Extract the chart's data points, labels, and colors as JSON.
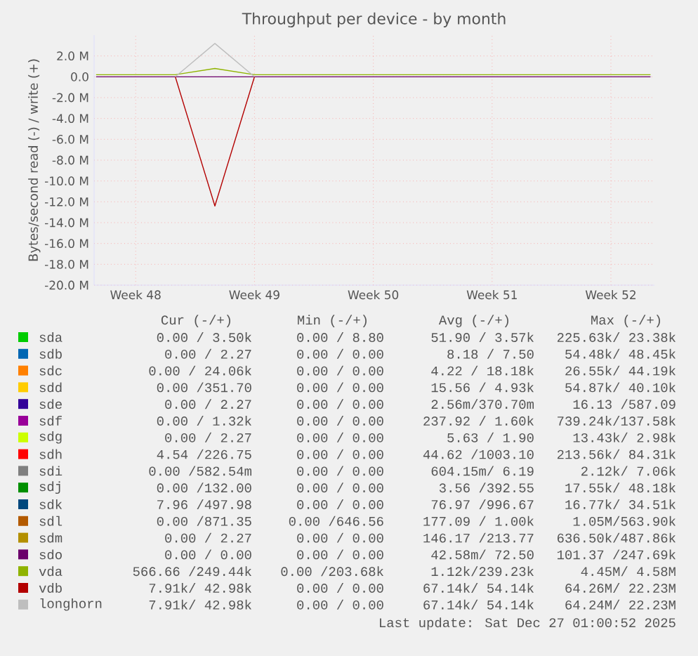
{
  "chart_data": {
    "type": "line",
    "title": "Throughput per device - by month",
    "ylabel": "Bytes/second read (-) / write (+)",
    "categories": [
      null,
      "Week 48",
      null,
      null,
      "Week 49",
      null,
      null,
      "Week 50",
      null,
      null,
      "Week 51",
      null,
      null,
      "Week 52",
      null
    ],
    "ylim": [
      -20,
      4
    ],
    "yticks": [
      {
        "value": -20,
        "label": "-20.0 M"
      },
      {
        "value": -18,
        "label": "-18.0 M"
      },
      {
        "value": -16,
        "label": "-16.0 M"
      },
      {
        "value": -14,
        "label": "-14.0 M"
      },
      {
        "value": -12,
        "label": "-12.0 M"
      },
      {
        "value": -10,
        "label": "-10.0 M"
      },
      {
        "value": -8,
        "label": "-8.0 M"
      },
      {
        "value": -6,
        "label": "-6.0 M"
      },
      {
        "value": -4,
        "label": "-4.0 M"
      },
      {
        "value": -2,
        "label": "-2.0 M"
      },
      {
        "value": 0,
        "label": "0.0"
      },
      {
        "value": 2,
        "label": "2.0 M"
      }
    ],
    "grid": true,
    "legend": "bottom",
    "marker": "none",
    "line_style": "solid",
    "series": [
      {
        "name": "sda",
        "color": "#00cc00",
        "values": [
          null,
          null,
          null,
          null,
          null,
          null,
          null,
          null,
          null,
          null,
          null,
          null,
          null,
          null,
          null
        ]
      },
      {
        "name": "sdb",
        "color": "#0066b3",
        "values": [
          null,
          null,
          null,
          null,
          null,
          null,
          null,
          null,
          null,
          null,
          null,
          null,
          null,
          null,
          null
        ]
      },
      {
        "name": "sdc",
        "color": "#ff8000",
        "values": [
          null,
          null,
          null,
          null,
          null,
          null,
          null,
          null,
          null,
          null,
          null,
          null,
          null,
          null,
          null
        ]
      },
      {
        "name": "sdd",
        "color": "#ffcc00",
        "values": [
          null,
          null,
          null,
          null,
          null,
          null,
          null,
          null,
          null,
          null,
          null,
          null,
          null,
          null,
          null
        ]
      },
      {
        "name": "sde",
        "color": "#330099",
        "values": [
          null,
          null,
          null,
          null,
          null,
          null,
          null,
          null,
          null,
          null,
          null,
          null,
          null,
          null,
          null
        ]
      },
      {
        "name": "sdf",
        "color": "#990099",
        "values": [
          null,
          null,
          null,
          null,
          null,
          null,
          null,
          null,
          null,
          null,
          null,
          null,
          null,
          null,
          null
        ]
      },
      {
        "name": "sdg",
        "color": "#ccff00",
        "values": [
          null,
          null,
          null,
          null,
          null,
          null,
          null,
          null,
          null,
          null,
          null,
          null,
          null,
          null,
          null
        ]
      },
      {
        "name": "sdh",
        "color": "#ff0000",
        "values": [
          null,
          null,
          null,
          null,
          null,
          null,
          null,
          null,
          null,
          null,
          null,
          null,
          null,
          null,
          null
        ]
      },
      {
        "name": "sdi",
        "color": "#808080",
        "values": [
          null,
          null,
          null,
          null,
          null,
          null,
          null,
          null,
          null,
          null,
          null,
          null,
          null,
          null,
          null
        ]
      },
      {
        "name": "sdj",
        "color": "#008f00",
        "values": [
          null,
          null,
          null,
          null,
          null,
          null,
          null,
          null,
          null,
          null,
          null,
          null,
          null,
          null,
          null
        ]
      },
      {
        "name": "sdk",
        "color": "#00487d",
        "values": [
          null,
          null,
          null,
          null,
          null,
          null,
          null,
          null,
          null,
          null,
          null,
          null,
          null,
          null,
          null
        ]
      },
      {
        "name": "sdl",
        "color": "#b35a00",
        "values": [
          null,
          null,
          null,
          null,
          null,
          null,
          null,
          null,
          null,
          null,
          null,
          null,
          null,
          null,
          null
        ]
      },
      {
        "name": "sdm",
        "color": "#b38f00",
        "values": [
          null,
          null,
          null,
          null,
          null,
          null,
          null,
          null,
          null,
          null,
          null,
          null,
          null,
          null,
          null
        ]
      },
      {
        "name": "sdo",
        "color": "#6b006b",
        "values": [
          0,
          0,
          0,
          0,
          0,
          0,
          0,
          0,
          0,
          0,
          0,
          0,
          0,
          0,
          0
        ]
      },
      {
        "name": "vda",
        "color": "#8fb300",
        "values": [
          0.2,
          0.2,
          0.2,
          0.8,
          0.2,
          0.2,
          0.2,
          0.2,
          0.2,
          0.2,
          0.2,
          0.2,
          0.2,
          0.2,
          0.2
        ]
      },
      {
        "name": "vdb",
        "color": "#b30000",
        "values": [
          null,
          null,
          0,
          -12.4,
          0,
          null,
          null,
          null,
          null,
          null,
          null,
          null,
          null,
          null,
          null
        ]
      },
      {
        "name": "longhorn",
        "color": "#bebebe",
        "values": [
          null,
          null,
          0,
          3.2,
          0,
          null,
          null,
          null,
          null,
          null,
          null,
          null,
          null,
          null,
          null
        ]
      }
    ],
    "annotations": [
      "Cur (-/+)",
      "Min (-/+)",
      "Avg (-/+)",
      "Max (-/+)",
      "0.00 / 3.50k",
      "0.00 / 8.80",
      "51.90 / 3.57k",
      "225.63k/ 23.38k",
      "0.00 / 2.27",
      "0.00 / 0.00",
      "8.18 / 7.50",
      "54.48k/ 48.45k",
      "0.00 / 24.06k",
      "0.00 / 0.00",
      "4.22 / 18.18k",
      "26.55k/ 44.19k",
      "0.00 /351.70",
      "0.00 / 0.00",
      "15.56 / 4.93k",
      "54.87k/ 40.10k",
      "0.00 / 2.27",
      "0.00 / 0.00",
      "2.56m/370.70m",
      "16.13 /587.09",
      "0.00 / 1.32k",
      "0.00 / 0.00",
      "237.92 / 1.60k",
      "739.24k/137.58k",
      "0.00 / 2.27",
      "0.00 / 0.00",
      "5.63 / 1.90",
      "13.43k/ 2.98k",
      "4.54 /226.75",
      "0.00 / 0.00",
      "44.62 /1003.10",
      "213.56k/ 84.31k",
      "0.00 /582.54m",
      "0.00 / 0.00",
      "604.15m/ 6.19",
      "2.12k/ 7.06k",
      "0.00 /132.00",
      "0.00 / 0.00",
      "3.56 /392.55",
      "17.55k/ 48.18k",
      "7.96 /497.98",
      "0.00 / 0.00",
      "76.97 /996.67",
      "16.77k/ 34.51k",
      "0.00 /871.35",
      "0.00 /646.56",
      "177.09 / 1.00k",
      "1.05M/563.90k",
      "0.00 / 2.27",
      "0.00 / 0.00",
      "146.17 /213.77",
      "636.50k/487.86k",
      "0.00 / 0.00",
      "0.00 / 0.00",
      "42.58m/ 72.50",
      "101.37 /247.69k",
      "566.66 /249.44k",
      "0.00 /203.68k",
      "1.12k/239.23k",
      "4.45M/ 4.58M",
      "7.91k/ 42.98k",
      "0.00 / 0.00",
      "67.14k/ 54.14k",
      "64.26M/ 22.23M",
      "7.91k/ 42.98k",
      "0.00 / 0.00",
      "67.14k/ 54.14k",
      "64.24M/ 22.23M",
      "Last update: Sat Dec 27 01:00:52 2025"
    ]
  }
}
